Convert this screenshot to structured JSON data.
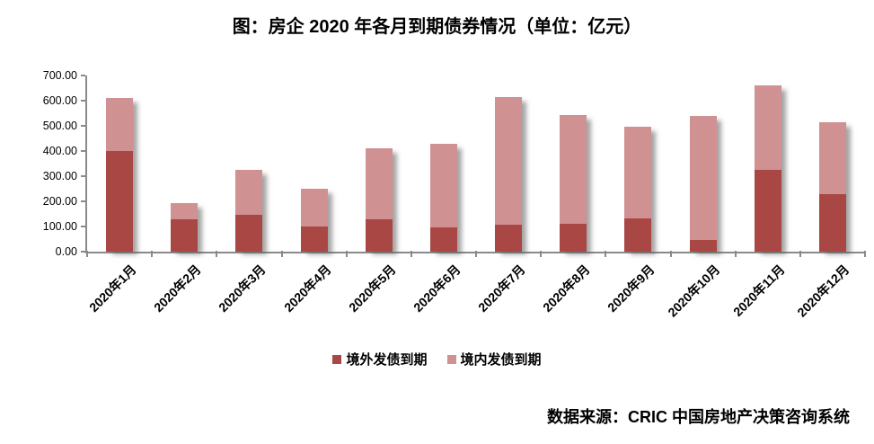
{
  "title": "图：房企 2020 年各月到期债券情况（单位：亿元）",
  "source": "数据来源：CRIC 中国房地产决策咨询系统",
  "colors": {
    "overseas_bar": "#A84743",
    "domestic_bar": "#D09192",
    "axis": "#8A8A8A",
    "text": "#000000",
    "background": "#FFFFFF"
  },
  "chart_data": {
    "type": "bar",
    "stacked": true,
    "title": "图：房企 2020 年各月到期债券情况（单位：亿元）",
    "categories": [
      "2020年1月",
      "2020年2月",
      "2020年3月",
      "2020年4月",
      "2020年5月",
      "2020年6月",
      "2020年7月",
      "2020年8月",
      "2020年9月",
      "2020年10月",
      "2020年11月",
      "2020年12月"
    ],
    "series": [
      {
        "key": "overseas",
        "name": "境外发债到期",
        "color": "#A84743",
        "values": [
          400,
          128,
          146,
          100,
          128,
          96,
          108,
          112,
          133,
          46,
          325,
          227
        ]
      },
      {
        "key": "domestic",
        "name": "境内发债到期",
        "color": "#D09192",
        "values": [
          212,
          66,
          180,
          151,
          282,
          334,
          505,
          432,
          364,
          492,
          335,
          288
        ]
      }
    ],
    "totals": [
      612,
      194,
      326,
      251,
      410,
      430,
      613,
      544,
      497,
      538,
      660,
      515
    ],
    "ylabel": "",
    "xlabel": "",
    "ylim": [
      0,
      700
    ],
    "y_ticks": [
      "700.00",
      "600.00",
      "500.00",
      "400.00",
      "300.00",
      "200.00",
      "100.00",
      "0.00"
    ],
    "grid": false,
    "legend_position": "bottom"
  }
}
